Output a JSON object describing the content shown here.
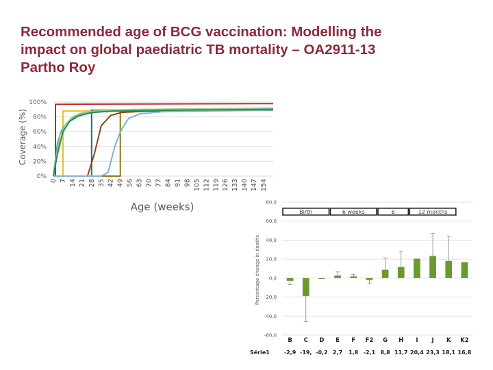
{
  "title_lines": [
    "Recommended age of BCG vaccination: Modelling the",
    "impact on global paediatric TB mortality – OA2911-13",
    "Partho Roy"
  ],
  "chart_data": [
    {
      "type": "line",
      "title": "",
      "xlabel": "Age (weeks)",
      "ylabel": "Coverage (%)",
      "x": [
        0,
        7,
        14,
        21,
        28,
        35,
        42,
        49,
        56,
        63,
        70,
        77,
        84,
        91,
        98,
        105,
        112,
        119,
        126,
        133,
        140,
        147,
        154
      ],
      "x_tick_labels": [
        "0",
        "7",
        "14",
        "21",
        "28",
        "35",
        "42",
        "49",
        "56",
        "63",
        "70",
        "77",
        "84",
        "91",
        "98",
        "105",
        "112",
        "119",
        "126",
        "133",
        "140",
        "147",
        "154"
      ],
      "y_tick_labels": [
        "0%",
        "20%",
        "40%",
        "60%",
        "80%",
        "100%"
      ],
      "ylim": [
        0,
        100
      ],
      "xlim": [
        0,
        161
      ],
      "grid": true,
      "series": [
        {
          "name": "Dark red",
          "color": "#c0282d",
          "points": [
            [
              0,
              0
            ],
            [
              1.5,
              0
            ],
            [
              1.5,
              97
            ],
            [
              161,
              98
            ]
          ]
        },
        {
          "name": "Yellow",
          "color": "#e6c229",
          "points": [
            [
              0,
              0
            ],
            [
              7,
              0
            ],
            [
              7,
              88
            ],
            [
              161,
              89
            ]
          ]
        },
        {
          "name": "Teal",
          "color": "#1c6f82",
          "points": [
            [
              0,
              0
            ],
            [
              28,
              0
            ],
            [
              28,
              89
            ],
            [
              161,
              90
            ]
          ]
        },
        {
          "name": "Olive",
          "color": "#8a7a1a",
          "points": [
            [
              0,
              0
            ],
            [
              49,
              0
            ],
            [
              49,
              88
            ],
            [
              161,
              89
            ]
          ]
        },
        {
          "name": "Brown",
          "color": "#8b4513",
          "points": [
            [
              0,
              0
            ],
            [
              25,
              0
            ],
            [
              30,
              30
            ],
            [
              35,
              68
            ],
            [
              42,
              82
            ],
            [
              50,
              86
            ],
            [
              70,
              88
            ],
            [
              100,
              89
            ],
            [
              161,
              90
            ]
          ]
        },
        {
          "name": "Light blue",
          "color": "#7fb2d0",
          "points": [
            [
              0,
              0
            ],
            [
              35,
              0
            ],
            [
              40,
              5
            ],
            [
              45,
              40
            ],
            [
              49,
              60
            ],
            [
              55,
              78
            ],
            [
              63,
              84
            ],
            [
              80,
              87
            ],
            [
              110,
              88
            ],
            [
              161,
              89
            ]
          ]
        },
        {
          "name": "Blue green",
          "color": "#4aa3b3",
          "points": [
            [
              0,
              0
            ],
            [
              1,
              15
            ],
            [
              3,
              45
            ],
            [
              6,
              62
            ],
            [
              10,
              72
            ],
            [
              15,
              80
            ],
            [
              22,
              84
            ],
            [
              35,
              87
            ],
            [
              60,
              89
            ],
            [
              100,
              90
            ],
            [
              161,
              91
            ]
          ]
        },
        {
          "name": "Light green",
          "color": "#9acd7a",
          "points": [
            [
              0,
              0
            ],
            [
              2,
              25
            ],
            [
              5,
              55
            ],
            [
              9,
              70
            ],
            [
              14,
              80
            ],
            [
              20,
              85
            ],
            [
              30,
              88
            ],
            [
              60,
              90
            ],
            [
              110,
              91
            ],
            [
              161,
              92
            ]
          ]
        },
        {
          "name": "Green",
          "color": "#2e8b57",
          "points": [
            [
              0,
              0
            ],
            [
              3,
              30
            ],
            [
              7,
              60
            ],
            [
              12,
              74
            ],
            [
              18,
              81
            ],
            [
              28,
              86
            ],
            [
              45,
              88
            ],
            [
              80,
              89
            ],
            [
              161,
              90
            ]
          ]
        }
      ]
    },
    {
      "type": "bar",
      "title": "",
      "xlabel": "",
      "ylabel": "Percentage change in deaths",
      "categories": [
        "B",
        "C",
        "D",
        "E",
        "F",
        "F2",
        "G",
        "H",
        "I",
        "J",
        "K",
        "K2"
      ],
      "series": [
        {
          "name": "Série1",
          "color": "#6a9a2f",
          "values": [
            -2.9,
            -19.0,
            -0.2,
            2.7,
            1.8,
            -2.1,
            8.8,
            11.7,
            20.4,
            23.3,
            18.1,
            16.8
          ],
          "value_labels": [
            "-2,9",
            "-19,",
            "-0,2",
            "2,7",
            "1,8",
            "-2,1",
            "8,8",
            "11,7",
            "20,4",
            "23,3",
            "18,1",
            "16,8"
          ],
          "error_upper": [
            -2.9,
            -19.0,
            -0.2,
            6.5,
            4.0,
            -2.1,
            21.0,
            28.0,
            20.4,
            47.0,
            44.0,
            16.8
          ],
          "error_lower": [
            -7.0,
            -46.0,
            -0.5,
            1.5,
            1.0,
            -6.0,
            8.8,
            11.7,
            20.4,
            23.3,
            18.1,
            16.8
          ]
        }
      ],
      "y_tick_labels": [
        "-60,0",
        "-40,0",
        "-20,0",
        "0,0",
        "20,0",
        "40,0",
        "60,0",
        "80,0"
      ],
      "ylim": [
        -60,
        80
      ],
      "grid": true,
      "group_labels": [
        "Birth",
        "6 weeks",
        "6",
        "12 months"
      ],
      "legend_row_label": "Série1"
    }
  ]
}
